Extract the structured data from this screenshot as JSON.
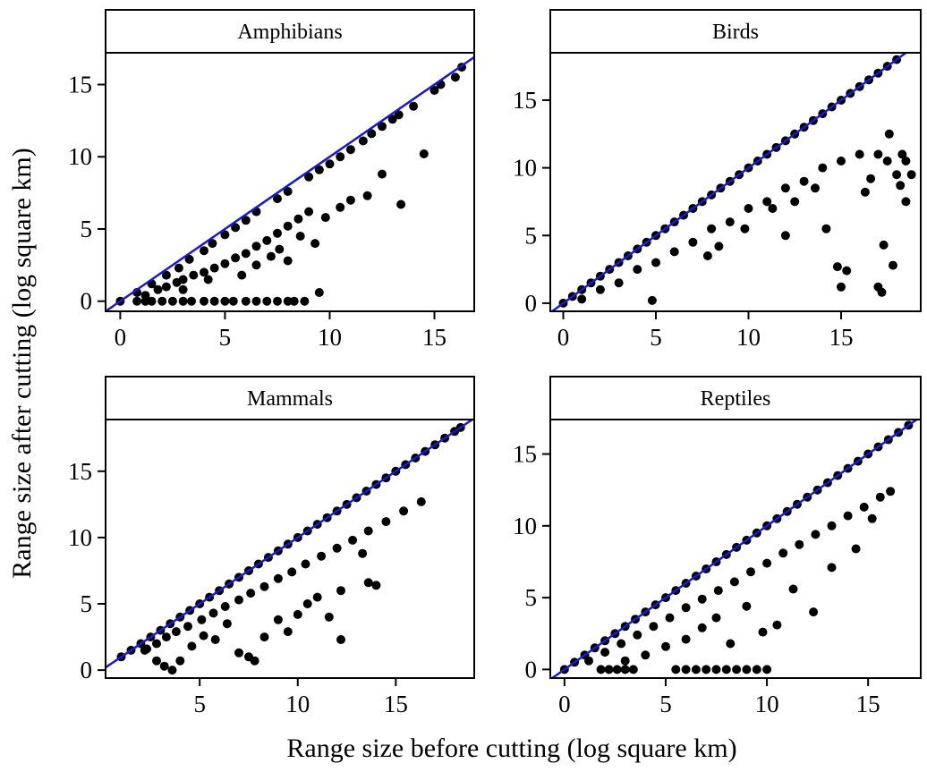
{
  "figure": {
    "ylabel": "Range size after cutting (log square km)",
    "xlabel": "Range size before cutting (log square km)"
  },
  "colors": {
    "point": "#000000",
    "identity_line": "#1a1acc",
    "frame": "#000000",
    "strip_fill": "#ffffff"
  },
  "chart_data": [
    {
      "type": "scatter",
      "title": "Amphibians",
      "xlim": [
        -0.7,
        16.9
      ],
      "ylim": [
        -0.7,
        17.2
      ],
      "xticks": [
        0,
        5,
        10,
        15
      ],
      "yticks": [
        0,
        5,
        10,
        15
      ],
      "reference_line": "y = x",
      "x": [
        0,
        0.8,
        1.2,
        1.5,
        2,
        2.5,
        3,
        3.4,
        4,
        4.5,
        5,
        5.4,
        6,
        6.5,
        7,
        7.5,
        8,
        8.3,
        8.8,
        9.5,
        0.8,
        1.5,
        2.2,
        2.8,
        3.3,
        4,
        4.4,
        5,
        5.5,
        6,
        6.5,
        7.5,
        8,
        9,
        9.5,
        10,
        10.5,
        11,
        11.6,
        12,
        12.5,
        13,
        13.3,
        14,
        15,
        15.3,
        16,
        16.3,
        1.2,
        1.8,
        2.2,
        2.7,
        3,
        3.5,
        4,
        4.5,
        5,
        5.5,
        6,
        6.5,
        7,
        7.5,
        8,
        8.5,
        9,
        3,
        4.2,
        5.8,
        6.5,
        7.2,
        7.6,
        8,
        8.6,
        9.3,
        9.8,
        10.5,
        11,
        11.8,
        12.5,
        13.4,
        14.5
      ],
      "y": [
        0,
        0,
        0,
        0,
        0,
        0,
        0,
        0,
        0,
        0,
        0,
        0,
        0,
        0,
        0,
        0,
        0,
        0,
        0,
        0.6,
        0.6,
        1.2,
        1.8,
        2.3,
        2.9,
        3.5,
        4,
        4.6,
        5.1,
        5.6,
        6.2,
        7.1,
        7.6,
        8.6,
        9.1,
        9.5,
        10,
        10.5,
        11.1,
        11.6,
        12.1,
        12.6,
        12.9,
        13.5,
        14.6,
        15,
        15.5,
        16.2,
        0.4,
        0.8,
        1,
        1.3,
        1.5,
        1.8,
        2,
        2.3,
        2.6,
        3,
        3.3,
        3.8,
        4.2,
        4.7,
        5.2,
        5.7,
        6.2,
        0.8,
        1.5,
        1.8,
        2.5,
        3.1,
        3.6,
        2.8,
        4.5,
        4,
        5.8,
        6.5,
        7,
        7.3,
        8.8,
        6.7,
        10.2
      ]
    },
    {
      "type": "scatter",
      "title": "Birds",
      "xlim": [
        -0.7,
        19.3
      ],
      "ylim": [
        -0.6,
        18.5
      ],
      "xticks": [
        0,
        5,
        10,
        15
      ],
      "yticks": [
        0,
        5,
        10,
        15
      ],
      "reference_line": "y = x",
      "x": [
        0,
        0.5,
        1,
        1.5,
        2,
        2.5,
        3,
        3.5,
        4,
        4.5,
        5,
        5.5,
        6,
        6.5,
        7,
        7.5,
        8,
        8.5,
        9,
        9.5,
        10,
        10.5,
        11,
        11.5,
        12,
        12.5,
        13,
        13.5,
        14,
        14.5,
        15,
        15.5,
        16,
        16.5,
        17,
        17.5,
        18,
        1,
        2,
        3,
        4,
        5,
        6,
        7,
        8,
        9,
        10,
        11,
        12,
        13,
        14,
        15,
        16,
        17,
        17.5,
        18,
        18.5,
        4.8,
        7.8,
        8.4,
        9.8,
        11.3,
        12,
        12.5,
        13.6,
        14.2,
        14.8,
        15,
        15.3,
        16.3,
        16.6,
        17,
        17.3,
        17.2,
        17.8,
        18.2,
        18.5,
        18.8,
        18.3,
        17.6
      ],
      "y": [
        0,
        0.5,
        1,
        1.5,
        2,
        2.5,
        3,
        3.5,
        4,
        4.5,
        5,
        5.5,
        6,
        6.5,
        7,
        7.5,
        8,
        8.5,
        9,
        9.5,
        10,
        10.5,
        11,
        11.5,
        12,
        12.5,
        13,
        13.5,
        14,
        14.5,
        15,
        15.5,
        16,
        16.5,
        17,
        17.5,
        18,
        0.3,
        1,
        1.5,
        2.5,
        3,
        3.8,
        4.5,
        5.5,
        6,
        7,
        7.5,
        8.5,
        9,
        10,
        10.5,
        11,
        11,
        10.5,
        9.5,
        10.5,
        0.2,
        3.5,
        4.2,
        5.5,
        7,
        5,
        7.5,
        8.5,
        5.5,
        2.7,
        1.2,
        2.4,
        8.2,
        9.2,
        1.2,
        4.3,
        0.8,
        2.8,
        8.7,
        7.5,
        9.5,
        11,
        12.5
      ]
    },
    {
      "type": "scatter",
      "title": "Mammals",
      "xlim": [
        0.2,
        19.0
      ],
      "ylim": [
        -0.6,
        18.9
      ],
      "xticks": [
        5,
        10,
        15
      ],
      "yticks": [
        0,
        5,
        10,
        15
      ],
      "reference_line": "y = x",
      "x": [
        1,
        1.5,
        2,
        2.5,
        3,
        3.5,
        4,
        4.5,
        5,
        5.5,
        6,
        6.5,
        7,
        7.5,
        8,
        8.5,
        9,
        9.5,
        10,
        10.5,
        11,
        11.5,
        12,
        12.5,
        13,
        13.5,
        14,
        14.5,
        15,
        15.5,
        16,
        16.5,
        17,
        17.5,
        18,
        18.3,
        2.2,
        2.8,
        3.3,
        3.8,
        4.4,
        5.1,
        5.7,
        6.3,
        7,
        7.6,
        8.3,
        9,
        9.7,
        10.4,
        11.2,
        12,
        12.8,
        13.6,
        14.5,
        15.4,
        16.3,
        2.8,
        3.2,
        3.6,
        2.3,
        4,
        4.6,
        5.2,
        5.8,
        6.4,
        7,
        7.5,
        7.8,
        8.3,
        9,
        9.5,
        10,
        10.5,
        11,
        12.2,
        13.3,
        14,
        12.2,
        11.6,
        13.6
      ],
      "y": [
        1,
        1.5,
        2,
        2.5,
        3,
        3.5,
        4,
        4.5,
        5,
        5.5,
        6,
        6.5,
        7,
        7.5,
        8,
        8.5,
        9,
        9.5,
        10,
        10.5,
        11,
        11.5,
        12,
        12.5,
        13,
        13.5,
        14,
        14.5,
        15,
        15.5,
        16,
        16.5,
        17,
        17.5,
        18,
        18.3,
        1.5,
        2,
        2.5,
        2.9,
        3.3,
        3.8,
        4.3,
        4.8,
        5.3,
        5.8,
        6.3,
        6.9,
        7.4,
        8,
        8.6,
        9.2,
        9.8,
        10.5,
        11.2,
        12,
        12.7,
        0.7,
        0.3,
        0,
        1.6,
        0.7,
        1.8,
        2.6,
        2.3,
        3.5,
        1.3,
        1,
        0.7,
        2.5,
        3.8,
        2.9,
        4.2,
        5,
        5.5,
        6,
        8.8,
        6.4,
        2.3,
        4,
        6.6
      ]
    },
    {
      "type": "scatter",
      "title": "Reptiles",
      "xlim": [
        -0.7,
        17.6
      ],
      "ylim": [
        -0.6,
        17.4
      ],
      "xticks": [
        0,
        5,
        10,
        15
      ],
      "yticks": [
        0,
        5,
        10,
        15
      ],
      "reference_line": "y = x",
      "x": [
        0,
        0.5,
        1,
        1.5,
        2,
        2.5,
        3,
        3.5,
        4,
        4.5,
        5,
        5.5,
        6,
        6.5,
        7,
        7.5,
        8,
        8.5,
        9,
        9.5,
        10,
        10.5,
        11,
        11.5,
        12,
        12.5,
        13,
        13.5,
        14,
        14.5,
        15,
        15.5,
        16,
        16.5,
        17,
        1.8,
        2.2,
        2.6,
        3,
        3.4,
        5.5,
        6,
        6.5,
        7,
        7.5,
        8,
        8.5,
        9,
        9.5,
        10,
        1.2,
        2,
        2.8,
        3.6,
        4.4,
        5.2,
        6,
        6.8,
        7.6,
        8.4,
        9.2,
        10,
        10.8,
        11.6,
        12.4,
        13.2,
        14,
        14.8,
        15.6,
        3,
        4,
        5,
        6,
        6.8,
        7.5,
        8.2,
        9,
        9.8,
        10.5,
        11.3,
        12.3,
        13.2,
        14.4,
        15.2,
        16.1
      ],
      "y": [
        0,
        0.5,
        1,
        1.5,
        2,
        2.5,
        3,
        3.5,
        4,
        4.5,
        5,
        5.5,
        6,
        6.5,
        7,
        7.5,
        8,
        8.5,
        9,
        9.5,
        10,
        10.5,
        11,
        11.5,
        12,
        12.5,
        13,
        13.5,
        14,
        14.5,
        15,
        15.5,
        16,
        16.5,
        17,
        0,
        0,
        0,
        0,
        0,
        0,
        0,
        0,
        0,
        0,
        0,
        0,
        0,
        0,
        0,
        0.6,
        1.2,
        1.8,
        2.4,
        3,
        3.6,
        4.3,
        4.9,
        5.5,
        6.1,
        6.8,
        7.4,
        8.1,
        8.7,
        9.4,
        10,
        10.7,
        11.3,
        12,
        0.6,
        1,
        1.6,
        2.1,
        2.9,
        3.6,
        1.8,
        4.4,
        2.6,
        3.1,
        5.6,
        4,
        7.1,
        8.4,
        10.5,
        12.4
      ]
    }
  ]
}
